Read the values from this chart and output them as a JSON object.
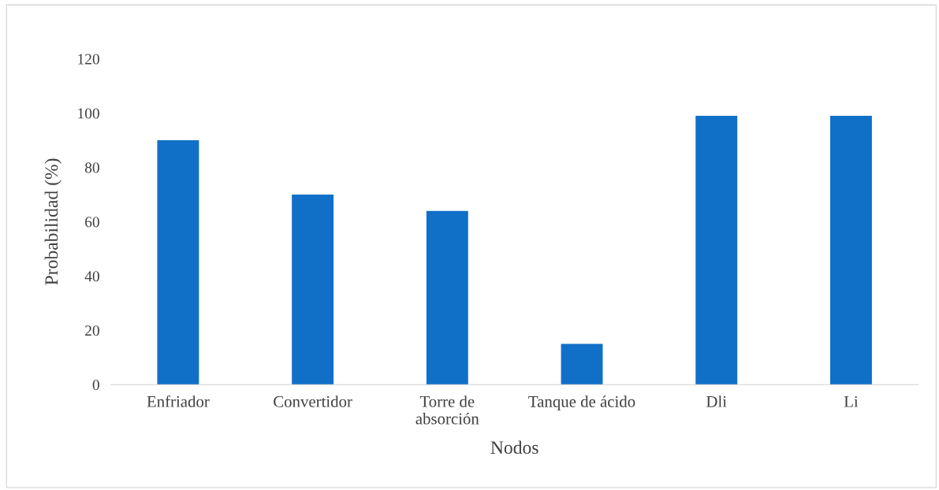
{
  "chart_data": {
    "type": "bar",
    "xlabel": "Nodos",
    "ylabel": "Probabilidad (%)",
    "categories": [
      "Enfriador",
      "Convertidor",
      "Torre de\nabsorción",
      "Tanque de ácido",
      "Dli",
      "Li"
    ],
    "values": [
      90,
      70,
      64,
      15,
      99,
      99
    ],
    "color": "#1070c8",
    "ylim": [
      0,
      120
    ],
    "yticks": [
      0,
      20,
      40,
      60,
      80,
      100,
      120
    ],
    "grid": false,
    "legend": false
  }
}
